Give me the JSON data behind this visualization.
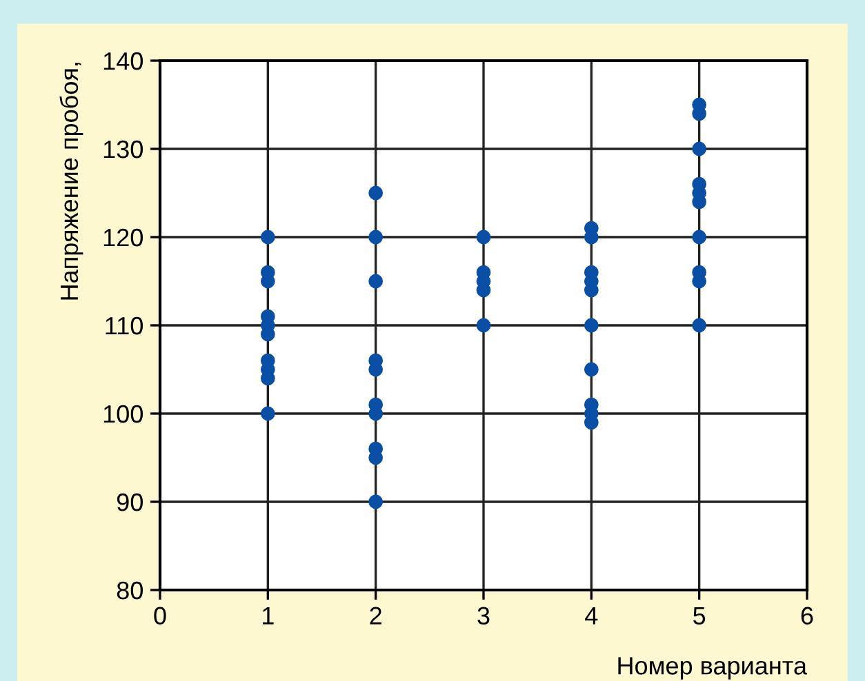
{
  "chart_data": {
    "type": "scatter",
    "xlabel": "Номер варианта",
    "ylabel": "Напряжение пробоя,",
    "series": [
      {
        "color": "#0a4fa6",
        "x": [
          1,
          1,
          1,
          1,
          1,
          1,
          1,
          1,
          1,
          1,
          2,
          2,
          2,
          2,
          2,
          2,
          2,
          2,
          2,
          2,
          3,
          3,
          3,
          3,
          3,
          4,
          4,
          4,
          4,
          4,
          4,
          4,
          4,
          4,
          4,
          5,
          5,
          5,
          5,
          5,
          5,
          5,
          5,
          5,
          5
        ],
        "values": [
          120,
          116,
          115,
          111,
          110,
          109,
          106,
          105,
          104,
          100,
          125,
          120,
          115,
          106,
          105,
          101,
          100,
          96,
          95,
          90,
          120,
          116,
          115,
          114,
          110,
          121,
          120,
          116,
          115,
          114,
          110,
          105,
          101,
          100,
          99,
          135,
          134,
          130,
          126,
          125,
          124,
          120,
          116,
          115,
          110
        ]
      }
    ],
    "xlim": [
      0,
      6
    ],
    "xticks": [
      0,
      1,
      2,
      3,
      4,
      5,
      6
    ],
    "ylim": [
      80,
      140
    ],
    "yticks": [
      80,
      90,
      100,
      110,
      120,
      130,
      140
    ],
    "grid": true,
    "marker": "circle"
  }
}
